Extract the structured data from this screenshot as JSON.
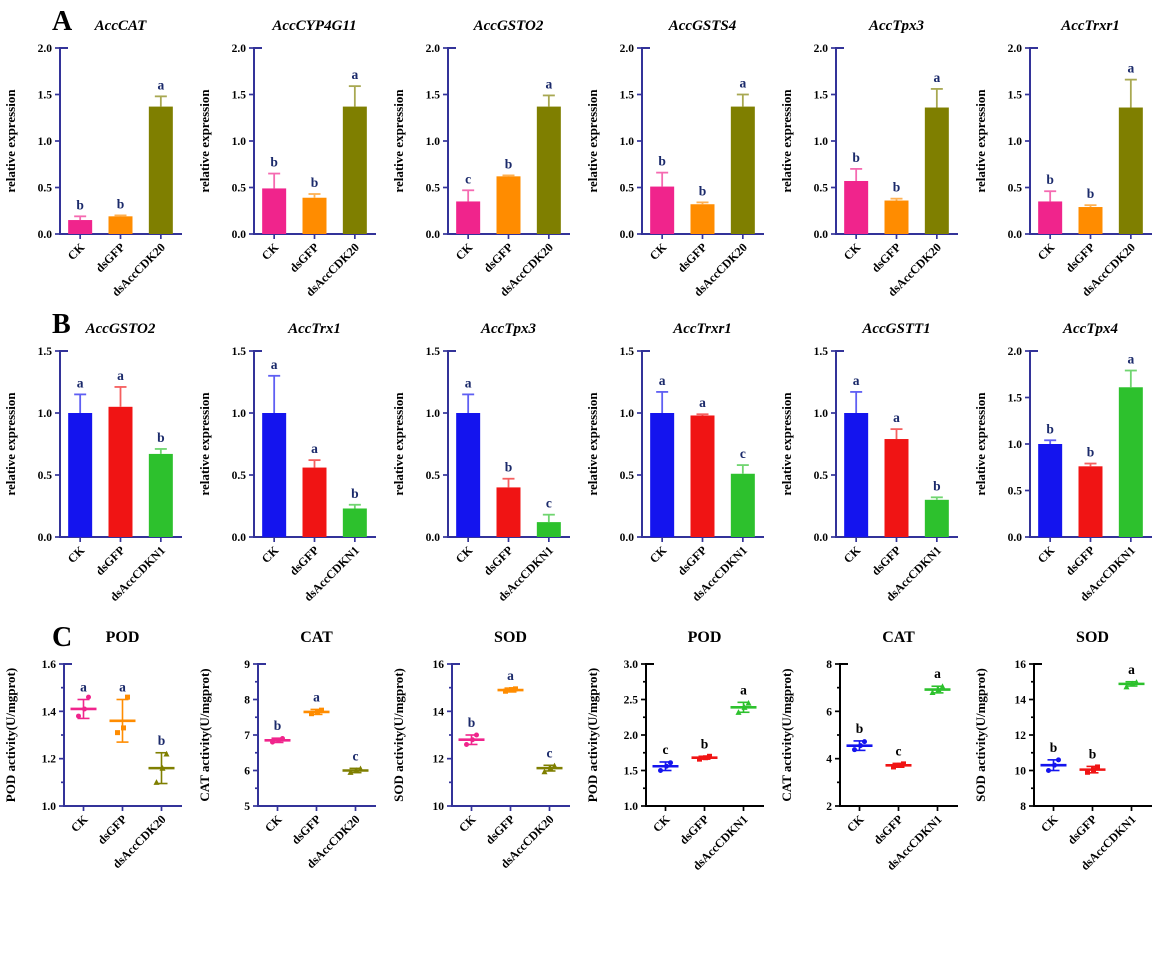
{
  "figure": {
    "background": "#ffffff",
    "panels": [
      {
        "label": "A"
      },
      {
        "label": "B"
      },
      {
        "label": "C"
      }
    ]
  },
  "palette": {
    "pink": "#F0248C",
    "orange": "#FF8C00",
    "olive": "#7F7F00",
    "blue": "#1414EE",
    "red": "#F01414",
    "green": "#2DC12D",
    "axis_navy": "#333399",
    "axis_black": "#000000",
    "letter_navy": "#1B2A6B",
    "letter_black": "#000000",
    "text_black": "#000000"
  },
  "chart_data": [
    {
      "type": "bar",
      "panel": "A",
      "title": "AccCAT",
      "ylabel": "relative expression",
      "ylim": [
        0,
        2.0
      ],
      "yticks": [
        "0.0",
        "0.5",
        "1.0",
        "1.5",
        "2.0"
      ],
      "categories": [
        "CK",
        "dsGFP",
        "dsAccCDK20"
      ],
      "values": [
        0.15,
        0.19,
        1.37
      ],
      "errors": [
        0.04,
        0.01,
        0.11
      ],
      "letters": [
        "b",
        "b",
        "a"
      ],
      "colors": [
        "#F0248C",
        "#FF8C00",
        "#7F7F00"
      ],
      "axis_color": "#333399",
      "letter_color": "#1B2A6B"
    },
    {
      "type": "bar",
      "panel": "A",
      "title": "AccCYP4G11",
      "ylabel": "relative expression",
      "ylim": [
        0,
        2.0
      ],
      "yticks": [
        "0.0",
        "0.5",
        "1.0",
        "1.5",
        "2.0"
      ],
      "categories": [
        "CK",
        "dsGFP",
        "dsAccCDK20"
      ],
      "values": [
        0.49,
        0.39,
        1.37
      ],
      "errors": [
        0.16,
        0.04,
        0.22
      ],
      "letters": [
        "b",
        "b",
        "a"
      ],
      "colors": [
        "#F0248C",
        "#FF8C00",
        "#7F7F00"
      ],
      "axis_color": "#333399",
      "letter_color": "#1B2A6B"
    },
    {
      "type": "bar",
      "panel": "A",
      "title": "AccGSTO2",
      "ylabel": "relative expression",
      "ylim": [
        0,
        2.0
      ],
      "yticks": [
        "0.0",
        "0.5",
        "1.0",
        "1.5",
        "2.0"
      ],
      "categories": [
        "CK",
        "dsGFP",
        "dsAccCDK20"
      ],
      "values": [
        0.35,
        0.62,
        1.37
      ],
      "errors": [
        0.12,
        0.01,
        0.12
      ],
      "letters": [
        "c",
        "b",
        "a"
      ],
      "colors": [
        "#F0248C",
        "#FF8C00",
        "#7F7F00"
      ],
      "axis_color": "#333399",
      "letter_color": "#1B2A6B"
    },
    {
      "type": "bar",
      "panel": "A",
      "title": "AccGSTS4",
      "ylabel": "relative expression",
      "ylim": [
        0,
        2.0
      ],
      "yticks": [
        "0.0",
        "0.5",
        "1.0",
        "1.5",
        "2.0"
      ],
      "categories": [
        "CK",
        "dsGFP",
        "dsAccCDK20"
      ],
      "values": [
        0.51,
        0.32,
        1.37
      ],
      "errors": [
        0.15,
        0.02,
        0.13
      ],
      "letters": [
        "b",
        "b",
        "a"
      ],
      "colors": [
        "#F0248C",
        "#FF8C00",
        "#7F7F00"
      ],
      "axis_color": "#333399",
      "letter_color": "#1B2A6B"
    },
    {
      "type": "bar",
      "panel": "A",
      "title": "AccTpx3",
      "ylabel": "relative expression",
      "ylim": [
        0,
        2.0
      ],
      "yticks": [
        "0.0",
        "0.5",
        "1.0",
        "1.5",
        "2.0"
      ],
      "categories": [
        "CK",
        "dsGFP",
        "dsAccCDK20"
      ],
      "values": [
        0.57,
        0.36,
        1.36
      ],
      "errors": [
        0.13,
        0.02,
        0.2
      ],
      "letters": [
        "b",
        "b",
        "a"
      ],
      "colors": [
        "#F0248C",
        "#FF8C00",
        "#7F7F00"
      ],
      "axis_color": "#333399",
      "letter_color": "#1B2A6B"
    },
    {
      "type": "bar",
      "panel": "A",
      "title": "AccTrxr1",
      "ylabel": "relative expression",
      "ylim": [
        0,
        2.0
      ],
      "yticks": [
        "0.0",
        "0.5",
        "1.0",
        "1.5",
        "2.0"
      ],
      "categories": [
        "CK",
        "dsGFP",
        "dsAccCDK20"
      ],
      "values": [
        0.35,
        0.29,
        1.36
      ],
      "errors": [
        0.11,
        0.02,
        0.3
      ],
      "letters": [
        "b",
        "b",
        "a"
      ],
      "colors": [
        "#F0248C",
        "#FF8C00",
        "#7F7F00"
      ],
      "axis_color": "#333399",
      "letter_color": "#1B2A6B"
    },
    {
      "type": "bar",
      "panel": "B",
      "title": "AccGSTO2",
      "ylabel": "relative expression",
      "ylim": [
        0,
        1.5
      ],
      "yticks": [
        "0.0",
        "0.5",
        "1.0",
        "1.5"
      ],
      "categories": [
        "CK",
        "dsGFP",
        "dsAccCDKN1"
      ],
      "values": [
        1.0,
        1.05,
        0.67
      ],
      "errors": [
        0.15,
        0.16,
        0.04
      ],
      "letters": [
        "a",
        "a",
        "b"
      ],
      "colors": [
        "#1414EE",
        "#F01414",
        "#2DC12D"
      ],
      "axis_color": "#333399",
      "letter_color": "#1B2A6B"
    },
    {
      "type": "bar",
      "panel": "B",
      "title": "AccTrx1",
      "ylabel": "relative expression",
      "ylim": [
        0,
        1.5
      ],
      "yticks": [
        "0.0",
        "0.5",
        "1.0",
        "1.5"
      ],
      "categories": [
        "CK",
        "dsGFP",
        "dsAccCDKN1"
      ],
      "values": [
        1.0,
        0.56,
        0.23
      ],
      "errors": [
        0.3,
        0.06,
        0.03
      ],
      "letters": [
        "a",
        "a",
        "b"
      ],
      "colors": [
        "#1414EE",
        "#F01414",
        "#2DC12D"
      ],
      "axis_color": "#333399",
      "letter_color": "#1B2A6B"
    },
    {
      "type": "bar",
      "panel": "B",
      "title": "AccTpx3",
      "ylabel": "relative expression",
      "ylim": [
        0,
        1.5
      ],
      "yticks": [
        "0.0",
        "0.5",
        "1.0",
        "1.5"
      ],
      "categories": [
        "CK",
        "dsGFP",
        "dsAccCDKN1"
      ],
      "values": [
        1.0,
        0.4,
        0.12
      ],
      "errors": [
        0.15,
        0.07,
        0.06
      ],
      "letters": [
        "a",
        "b",
        "c"
      ],
      "colors": [
        "#1414EE",
        "#F01414",
        "#2DC12D"
      ],
      "axis_color": "#333399",
      "letter_color": "#1B2A6B"
    },
    {
      "type": "bar",
      "panel": "B",
      "title": "AccTrxr1",
      "ylabel": "relative expression",
      "ylim": [
        0,
        1.5
      ],
      "yticks": [
        "0.0",
        "0.5",
        "1.0",
        "1.5"
      ],
      "categories": [
        "CK",
        "dsGFP",
        "dsAccCDKN1"
      ],
      "values": [
        1.0,
        0.98,
        0.51
      ],
      "errors": [
        0.17,
        0.01,
        0.07
      ],
      "letters": [
        "a",
        "a",
        "c"
      ],
      "colors": [
        "#1414EE",
        "#F01414",
        "#2DC12D"
      ],
      "axis_color": "#333399",
      "letter_color": "#1B2A6B"
    },
    {
      "type": "bar",
      "panel": "B",
      "title": "AccGSTT1",
      "ylabel": "relative expression",
      "ylim": [
        0,
        1.5
      ],
      "yticks": [
        "0.0",
        "0.5",
        "1.0",
        "1.5"
      ],
      "categories": [
        "CK",
        "dsGFP",
        "dsAccCDKN1"
      ],
      "values": [
        1.0,
        0.79,
        0.3
      ],
      "errors": [
        0.17,
        0.08,
        0.02
      ],
      "letters": [
        "a",
        "a",
        "b"
      ],
      "colors": [
        "#1414EE",
        "#F01414",
        "#2DC12D"
      ],
      "axis_color": "#333399",
      "letter_color": "#1B2A6B"
    },
    {
      "type": "bar",
      "panel": "B",
      "title": "AccTpx4",
      "ylabel": "relative expression",
      "ylim": [
        0,
        2.0
      ],
      "yticks": [
        "0.0",
        "0.5",
        "1.0",
        "1.5",
        "2.0"
      ],
      "categories": [
        "CK",
        "dsGFP",
        "dsAccCDKN1"
      ],
      "values": [
        1.0,
        0.76,
        1.61
      ],
      "errors": [
        0.04,
        0.03,
        0.18
      ],
      "letters": [
        "b",
        "b",
        "a"
      ],
      "colors": [
        "#1414EE",
        "#F01414",
        "#2DC12D"
      ],
      "axis_color": "#333399",
      "letter_color": "#1B2A6B"
    },
    {
      "type": "scatter",
      "panel": "C",
      "title": "POD",
      "ylabel": "POD activity(U/mgprot)",
      "ylim": [
        1.0,
        1.6
      ],
      "yticks": [
        "1.0",
        "1.2",
        "1.4",
        "1.6"
      ],
      "categories": [
        "CK",
        "dsGFP",
        "dsAccCDK20"
      ],
      "means": [
        1.41,
        1.36,
        1.16
      ],
      "errors": [
        0.04,
        0.09,
        0.065
      ],
      "points": [
        [
          1.38,
          1.41,
          1.46
        ],
        [
          1.31,
          1.33,
          1.46
        ],
        [
          1.1,
          1.16,
          1.22
        ]
      ],
      "letters": [
        "a",
        "a",
        "b"
      ],
      "colors": [
        "#F0248C",
        "#FF8C00",
        "#7F7F00"
      ],
      "axis_color": "#333399",
      "letter_color": "#1B2A6B"
    },
    {
      "type": "scatter",
      "panel": "C",
      "title": "CAT",
      "ylabel": "CAT activity(U/mgprot)",
      "ylim": [
        5,
        9
      ],
      "yticks": [
        "5",
        "6",
        "7",
        "8",
        "9"
      ],
      "categories": [
        "CK",
        "dsGFP",
        "dsAccCDK20"
      ],
      "means": [
        6.85,
        7.65,
        6.0
      ],
      "errors": [
        0.06,
        0.07,
        0.06
      ],
      "points": [
        [
          6.8,
          6.85,
          6.9
        ],
        [
          7.6,
          7.66,
          7.7
        ],
        [
          5.95,
          6.0,
          6.05
        ]
      ],
      "letters": [
        "b",
        "a",
        "c"
      ],
      "colors": [
        "#F0248C",
        "#FF8C00",
        "#7F7F00"
      ],
      "axis_color": "#333399",
      "letter_color": "#1B2A6B"
    },
    {
      "type": "scatter",
      "panel": "C",
      "title": "SOD",
      "ylabel": "SOD activity(U/mgprot)",
      "ylim": [
        10,
        16
      ],
      "yticks": [
        "10",
        "12",
        "14",
        "16"
      ],
      "categories": [
        "CK",
        "dsGFP",
        "dsAccCDK20"
      ],
      "means": [
        12.8,
        14.9,
        11.6
      ],
      "errors": [
        0.2,
        0.08,
        0.12
      ],
      "points": [
        [
          12.6,
          12.8,
          13.0
        ],
        [
          14.85,
          14.92,
          14.95
        ],
        [
          11.45,
          11.6,
          11.7
        ]
      ],
      "letters": [
        "b",
        "a",
        "c"
      ],
      "colors": [
        "#F0248C",
        "#FF8C00",
        "#7F7F00"
      ],
      "axis_color": "#333399",
      "letter_color": "#1B2A6B"
    },
    {
      "type": "scatter",
      "panel": "C",
      "title": "POD",
      "ylabel": "POD activity(U/mgprot)",
      "ylim": [
        1.0,
        3.0
      ],
      "yticks": [
        "1.0",
        "1.5",
        "2.0",
        "2.5",
        "3.0"
      ],
      "categories": [
        "CK",
        "dsGFP",
        "dsAccCDKN1"
      ],
      "means": [
        1.56,
        1.68,
        2.39
      ],
      "errors": [
        0.06,
        0.02,
        0.07
      ],
      "points": [
        [
          1.5,
          1.56,
          1.61
        ],
        [
          1.66,
          1.68,
          1.7
        ],
        [
          2.32,
          2.39,
          2.45
        ]
      ],
      "letters": [
        "c",
        "b",
        "a"
      ],
      "colors": [
        "#1414EE",
        "#F01414",
        "#2DC12D"
      ],
      "axis_color": "#000000",
      "letter_color": "#000000"
    },
    {
      "type": "scatter",
      "panel": "C",
      "title": "CAT",
      "ylabel": "CAT activity(U/mgprot)",
      "ylim": [
        2,
        8
      ],
      "yticks": [
        "2",
        "4",
        "6",
        "8"
      ],
      "categories": [
        "CK",
        "dsGFP",
        "dsAccCDKN1"
      ],
      "means": [
        4.55,
        3.72,
        6.92
      ],
      "errors": [
        0.2,
        0.08,
        0.14
      ],
      "points": [
        [
          4.38,
          4.55,
          4.72
        ],
        [
          3.65,
          3.72,
          3.78
        ],
        [
          6.8,
          6.92,
          7.05
        ]
      ],
      "letters": [
        "b",
        "c",
        "a"
      ],
      "colors": [
        "#1414EE",
        "#F01414",
        "#2DC12D"
      ],
      "axis_color": "#000000",
      "letter_color": "#000000"
    },
    {
      "type": "scatter",
      "panel": "C",
      "title": "SOD",
      "ylabel": "SOD activity(U/mgprot)",
      "ylim": [
        8,
        16
      ],
      "yticks": [
        "8",
        "10",
        "12",
        "14",
        "16"
      ],
      "categories": [
        "CK",
        "dsGFP",
        "dsAccCDKN1"
      ],
      "means": [
        10.3,
        10.05,
        14.88
      ],
      "errors": [
        0.3,
        0.18,
        0.12
      ],
      "points": [
        [
          10.0,
          10.3,
          10.6
        ],
        [
          9.9,
          10.05,
          10.2
        ],
        [
          14.72,
          14.88,
          14.97
        ]
      ],
      "letters": [
        "b",
        "b",
        "a"
      ],
      "colors": [
        "#1414EE",
        "#F01414",
        "#2DC12D"
      ],
      "axis_color": "#000000",
      "letter_color": "#000000"
    }
  ]
}
